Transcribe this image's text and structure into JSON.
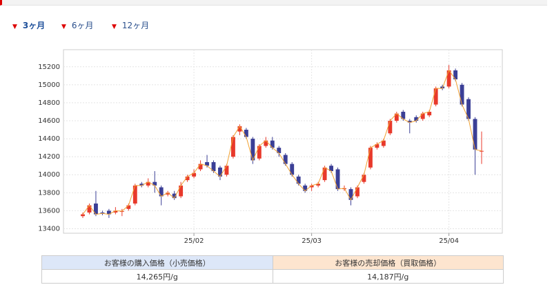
{
  "tabs": [
    "3ヶ月",
    "6ヶ月",
    "12ヶ月"
  ],
  "chart_data": {
    "type": "candlestick",
    "categories": [
      null,
      null,
      null,
      null,
      null,
      null,
      null,
      null,
      null,
      null,
      null,
      null,
      null,
      null,
      null,
      null,
      null,
      "25/02",
      null,
      null,
      null,
      null,
      null,
      null,
      null,
      null,
      null,
      null,
      null,
      null,
      null,
      null,
      null,
      null,
      null,
      "25/03",
      null,
      null,
      null,
      null,
      null,
      null,
      null,
      null,
      null,
      null,
      null,
      null,
      null,
      null,
      null,
      null,
      null,
      null,
      null,
      null,
      "25/04",
      null,
      null,
      null,
      null,
      null
    ],
    "open": [
      13540,
      13580,
      13680,
      13580,
      13600,
      13580,
      13590,
      13620,
      13680,
      13900,
      13880,
      13920,
      13860,
      13780,
      13790,
      13760,
      13940,
      13980,
      14060,
      14140,
      14140,
      14080,
      14000,
      14200,
      14480,
      14500,
      14400,
      14180,
      14320,
      14380,
      14300,
      14220,
      14120,
      13980,
      13880,
      13860,
      13880,
      13940,
      14100,
      14060,
      13840,
      13840,
      13760,
      13920,
      14080,
      14300,
      14320,
      14460,
      14600,
      14700,
      14600,
      14640,
      14620,
      14660,
      14780,
      14980,
      14980,
      15160,
      15000,
      14840,
      14620,
      14260
    ],
    "high": [
      13580,
      13680,
      13820,
      13600,
      13620,
      13640,
      13620,
      13680,
      13900,
      13920,
      13960,
      14040,
      13880,
      13820,
      13820,
      13920,
      14000,
      14060,
      14160,
      14220,
      14160,
      14100,
      14120,
      14440,
      14560,
      14520,
      14420,
      14340,
      14420,
      14420,
      14320,
      14240,
      14140,
      14000,
      13900,
      13900,
      13920,
      14100,
      14120,
      14080,
      13880,
      13860,
      13880,
      14020,
      14320,
      14360,
      14400,
      14620,
      14700,
      14720,
      14620,
      14660,
      14700,
      14720,
      14980,
      15000,
      15220,
      15180,
      15020,
      14860,
      14640,
      14480
    ],
    "low": [
      13520,
      13560,
      13540,
      13550,
      13520,
      13560,
      13540,
      13600,
      13660,
      13860,
      13860,
      13800,
      13660,
      13760,
      13720,
      13740,
      13920,
      13960,
      14040,
      14080,
      14020,
      13940,
      13980,
      14180,
      14440,
      14400,
      14120,
      14160,
      14300,
      14280,
      14200,
      14100,
      13980,
      13880,
      13800,
      13820,
      13860,
      13920,
      14020,
      13820,
      13820,
      13660,
      13740,
      13900,
      14060,
      14280,
      14300,
      14440,
      14580,
      14600,
      14460,
      14580,
      14600,
      14640,
      14760,
      14940,
      14960,
      15040,
      14760,
      14600,
      14000,
      14120
    ],
    "close": [
      13560,
      13660,
      13560,
      13570,
      13560,
      13600,
      13595,
      13660,
      13880,
      13880,
      13920,
      13880,
      13760,
      13800,
      13740,
      13880,
      13980,
      14020,
      14120,
      14100,
      14040,
      13980,
      14100,
      14420,
      14540,
      14420,
      14160,
      14320,
      14380,
      14300,
      14240,
      14120,
      14000,
      13900,
      13820,
      13880,
      13900,
      14080,
      14040,
      13840,
      13850,
      13720,
      13860,
      14000,
      14300,
      14340,
      14380,
      14600,
      14680,
      14620,
      14580,
      14600,
      14680,
      14700,
      14960,
      14960,
      15160,
      15060,
      14780,
      14620,
      14280,
      14265
    ],
    "up_color": "#e8392b",
    "down_color": "#3b3f96",
    "line_color": "#f0a030",
    "ylim": [
      13350,
      15390
    ],
    "yticks": [
      13400,
      13600,
      13800,
      14000,
      14200,
      14400,
      14600,
      14800,
      15000,
      15200
    ],
    "grid": true
  },
  "table": {
    "headers": [
      "お客様の購入価格（小売価格）",
      "お客様の売却価格（買取価格）"
    ],
    "values": [
      "14,265円/g",
      "14,187円/g"
    ]
  }
}
